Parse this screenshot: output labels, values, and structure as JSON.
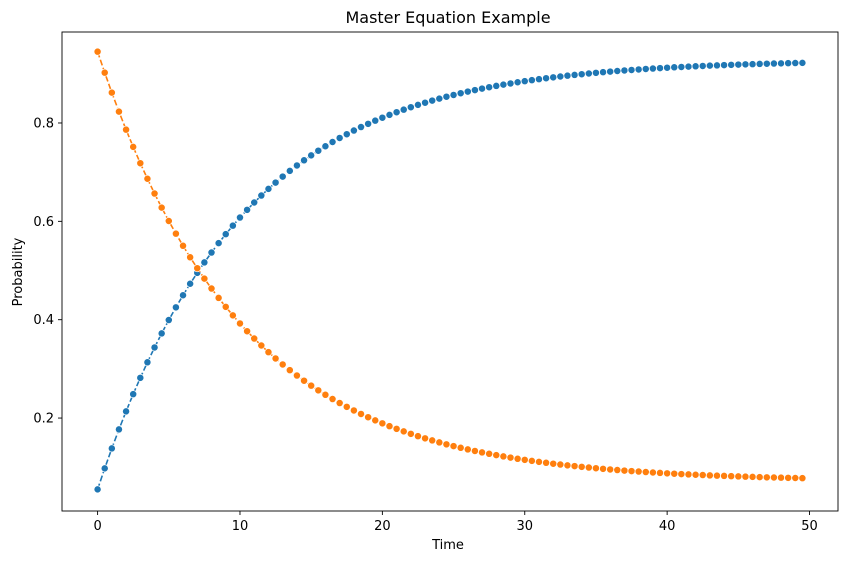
{
  "chart_data": {
    "type": "line",
    "title": "Master Equation Example",
    "xlabel": "Time",
    "ylabel": "Probability",
    "xlim": [
      -2.5,
      52.0
    ],
    "ylim": [
      0.011,
      0.985
    ],
    "xticks": [
      0,
      10,
      20,
      30,
      40,
      50
    ],
    "yticks": [
      0.2,
      0.4,
      0.6,
      0.8
    ],
    "xtick_labels": [
      "0",
      "10",
      "20",
      "30",
      "40",
      "50"
    ],
    "ytick_labels": [
      "0.2",
      "0.4",
      "0.6",
      "0.8"
    ],
    "grid": false,
    "legend": "none",
    "markers": "circle",
    "x": [
      0,
      0.5,
      1,
      1.5,
      2,
      2.5,
      3,
      3.5,
      4,
      4.5,
      5,
      5.5,
      6,
      6.5,
      7,
      7.5,
      8,
      8.5,
      9,
      9.5,
      10,
      10.5,
      11,
      11.5,
      12,
      12.5,
      13,
      13.5,
      14,
      14.5,
      15,
      15.5,
      16,
      16.5,
      17,
      17.5,
      18,
      18.5,
      19,
      19.5,
      20,
      20.5,
      21,
      21.5,
      22,
      22.5,
      23,
      23.5,
      24,
      24.5,
      25,
      25.5,
      26,
      26.5,
      27,
      27.5,
      28,
      28.5,
      29,
      29.5,
      30,
      30.5,
      31,
      31.5,
      32,
      32.5,
      33,
      33.5,
      34,
      34.5,
      35,
      35.5,
      36,
      36.5,
      37,
      37.5,
      38,
      38.5,
      39,
      39.5,
      40,
      40.5,
      41,
      41.5,
      42,
      42.5,
      43,
      43.5,
      44,
      44.5,
      45,
      45.5,
      46,
      46.5,
      47,
      47.5,
      48,
      48.5,
      49,
      49.5
    ],
    "series": [
      {
        "color": "#1f77b4",
        "values": [
          0.055,
          0.0977,
          0.1383,
          0.1769,
          0.2136,
          0.2486,
          0.2818,
          0.3134,
          0.3435,
          0.3721,
          0.3993,
          0.4251,
          0.4497,
          0.4731,
          0.4953,
          0.5165,
          0.5366,
          0.5557,
          0.5739,
          0.5912,
          0.6077,
          0.6234,
          0.6383,
          0.6525,
          0.666,
          0.6788,
          0.691,
          0.7026,
          0.7136,
          0.7241,
          0.7341,
          0.7436,
          0.7527,
          0.7613,
          0.7695,
          0.7772,
          0.7846,
          0.7917,
          0.7983,
          0.8047,
          0.8107,
          0.8165,
          0.8219,
          0.8271,
          0.8321,
          0.8368,
          0.8412,
          0.8455,
          0.8495,
          0.8534,
          0.857,
          0.8605,
          0.8638,
          0.8669,
          0.8699,
          0.8727,
          0.8754,
          0.878,
          0.8804,
          0.8828,
          0.885,
          0.8871,
          0.8891,
          0.891,
          0.8928,
          0.8945,
          0.8962,
          0.8977,
          0.8992,
          0.9006,
          0.902,
          0.9033,
          0.9045,
          0.9057,
          0.9068,
          0.9078,
          0.9088,
          0.9098,
          0.9107,
          0.9116,
          0.9124,
          0.9132,
          0.9139,
          0.9146,
          0.9153,
          0.9159,
          0.9166,
          0.9171,
          0.9177,
          0.9182,
          0.9187,
          0.9192,
          0.9196,
          0.9201,
          0.9205,
          0.9209,
          0.9212,
          0.9216,
          0.9219,
          0.9222
        ]
      },
      {
        "color": "#ff7f0e",
        "values": [
          0.945,
          0.9023,
          0.8617,
          0.8231,
          0.7864,
          0.7514,
          0.7182,
          0.6866,
          0.6565,
          0.6279,
          0.6007,
          0.5749,
          0.5503,
          0.5269,
          0.5047,
          0.4835,
          0.4634,
          0.4443,
          0.4261,
          0.4088,
          0.3923,
          0.3766,
          0.3617,
          0.3475,
          0.334,
          0.3212,
          0.309,
          0.2974,
          0.2864,
          0.2759,
          0.2659,
          0.2564,
          0.2473,
          0.2387,
          0.2305,
          0.2228,
          0.2154,
          0.2083,
          0.2017,
          0.1953,
          0.1893,
          0.1835,
          0.1781,
          0.1729,
          0.1679,
          0.1632,
          0.1588,
          0.1545,
          0.1505,
          0.1466,
          0.143,
          0.1395,
          0.1362,
          0.1331,
          0.1301,
          0.1273,
          0.1246,
          0.122,
          0.1196,
          0.1172,
          0.115,
          0.1129,
          0.1109,
          0.109,
          0.1072,
          0.1055,
          0.1038,
          0.1023,
          0.1008,
          0.0994,
          0.098,
          0.0967,
          0.0955,
          0.0943,
          0.0932,
          0.0922,
          0.0912,
          0.0902,
          0.0893,
          0.0884,
          0.0876,
          0.0868,
          0.0861,
          0.0854,
          0.0847,
          0.0841,
          0.0834,
          0.0829,
          0.0823,
          0.0818,
          0.0813,
          0.0808,
          0.0804,
          0.0799,
          0.0795,
          0.0791,
          0.0788,
          0.0784,
          0.0781,
          0.0778
        ]
      }
    ]
  }
}
